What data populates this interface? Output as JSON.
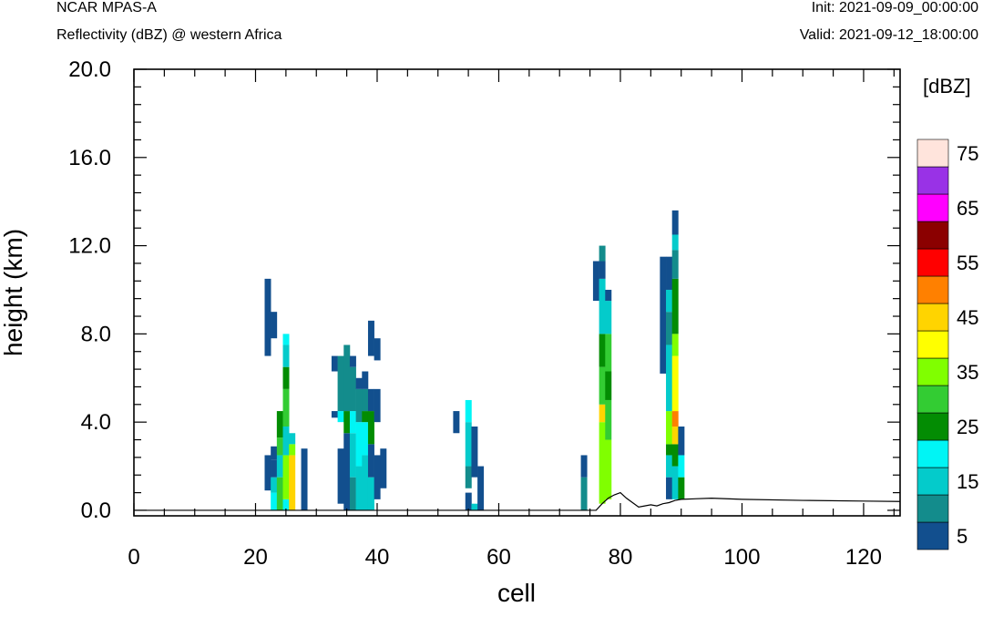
{
  "header": {
    "model": "NCAR MPAS-A",
    "field": "Reflectivity (dBZ) @ western Africa",
    "init": "Init: 2021-09-09_00:00:00",
    "valid": "Valid: 2021-09-12_18:00:00"
  },
  "chart_data": {
    "type": "heatmap",
    "xlabel": "cell",
    "ylabel": "height (km)",
    "xlim": [
      0,
      126
    ],
    "ylim": [
      -0.25,
      20
    ],
    "x_ticks": [
      "0",
      "20",
      "40",
      "60",
      "80",
      "100",
      "120"
    ],
    "x_tick_values": [
      0,
      20,
      40,
      60,
      80,
      100,
      120
    ],
    "y_ticks": [
      "0.0",
      "4.0",
      "8.0",
      "12.0",
      "16.0",
      "20.0"
    ],
    "y_tick_values": [
      0,
      4,
      8,
      12,
      16,
      20
    ],
    "colorbar": {
      "unit": "[dBZ]",
      "levels": [
        5,
        10,
        15,
        20,
        25,
        30,
        35,
        40,
        45,
        50,
        55,
        60,
        65,
        70,
        75
      ],
      "labels": [
        "5",
        "15",
        "25",
        "35",
        "45",
        "55",
        "65",
        "75"
      ],
      "colors": [
        "#124f8e",
        "#138c8c",
        "#04cbcb",
        "#00f5f5",
        "#038c03",
        "#33cc33",
        "#80ff00",
        "#ffff00",
        "#ffd400",
        "#ff8000",
        "#ff0000",
        "#8b0000",
        "#ff00ff",
        "#9932e6",
        "#ffe4dc"
      ]
    },
    "terrain_km": [
      [
        0,
        0
      ],
      [
        76,
        0
      ],
      [
        77,
        0.3
      ],
      [
        78,
        0.55
      ],
      [
        79,
        0.7
      ],
      [
        80,
        0.8
      ],
      [
        81,
        0.55
      ],
      [
        82,
        0.35
      ],
      [
        83,
        0.15
      ],
      [
        84,
        0.2
      ],
      [
        85,
        0.25
      ],
      [
        86,
        0.2
      ],
      [
        87,
        0.3
      ],
      [
        88,
        0.35
      ],
      [
        89,
        0.45
      ],
      [
        90,
        0.5
      ],
      [
        95,
        0.55
      ],
      [
        100,
        0.5
      ],
      [
        110,
        0.45
      ],
      [
        120,
        0.42
      ],
      [
        126,
        0.4
      ]
    ],
    "columns": [
      {
        "cell": 22,
        "segments": [
          [
            0.9,
            2.5,
            5
          ],
          [
            7.0,
            10.5,
            5
          ]
        ]
      },
      {
        "cell": 23,
        "segments": [
          [
            0.0,
            0.8,
            20
          ],
          [
            0.8,
            1.5,
            15
          ],
          [
            1.5,
            2.3,
            5
          ],
          [
            2.3,
            2.9,
            5
          ],
          [
            7.8,
            9.0,
            5
          ]
        ]
      },
      {
        "cell": 24,
        "segments": [
          [
            0.0,
            1.5,
            30
          ],
          [
            1.5,
            2.5,
            15
          ],
          [
            2.5,
            3.3,
            30
          ],
          [
            3.3,
            4.5,
            25
          ]
        ]
      },
      {
        "cell": 25,
        "segments": [
          [
            0.0,
            0.5,
            20
          ],
          [
            0.5,
            2.5,
            35
          ],
          [
            2.5,
            3.8,
            15
          ],
          [
            3.8,
            5.5,
            30
          ],
          [
            5.5,
            6.5,
            25
          ],
          [
            6.5,
            7.5,
            15
          ],
          [
            7.5,
            8.0,
            20
          ]
        ]
      },
      {
        "cell": 26,
        "segments": [
          [
            0.0,
            2.5,
            45
          ],
          [
            2.5,
            3.0,
            35
          ],
          [
            3.0,
            3.5,
            15
          ]
        ]
      },
      {
        "cell": 28,
        "segments": [
          [
            0.0,
            2.8,
            5
          ]
        ]
      },
      {
        "cell": 33,
        "segments": [
          [
            4.2,
            4.5,
            5
          ],
          [
            6.3,
            7.0,
            5
          ]
        ]
      },
      {
        "cell": 34,
        "segments": [
          [
            0.3,
            2.8,
            5
          ],
          [
            4.0,
            4.5,
            20
          ],
          [
            4.5,
            7.0,
            10
          ]
        ]
      },
      {
        "cell": 35,
        "segments": [
          [
            0.0,
            3.5,
            5
          ],
          [
            3.5,
            4.5,
            25
          ],
          [
            4.5,
            7.5,
            10
          ]
        ]
      },
      {
        "cell": 36,
        "segments": [
          [
            0.0,
            1.5,
            10
          ],
          [
            1.5,
            3.5,
            15
          ],
          [
            3.5,
            4.5,
            20
          ],
          [
            4.5,
            6.5,
            10
          ],
          [
            6.5,
            7.0,
            5
          ]
        ]
      },
      {
        "cell": 37,
        "segments": [
          [
            0.0,
            2.0,
            15
          ],
          [
            2.0,
            4.0,
            20
          ],
          [
            4.0,
            5.5,
            10
          ],
          [
            5.5,
            6.0,
            5
          ]
        ]
      },
      {
        "cell": 38,
        "segments": [
          [
            0.0,
            2.5,
            15
          ],
          [
            2.5,
            4.0,
            20
          ],
          [
            4.0,
            4.5,
            25
          ],
          [
            4.5,
            5.5,
            10
          ],
          [
            5.5,
            6.3,
            5
          ]
        ]
      },
      {
        "cell": 39,
        "segments": [
          [
            0.0,
            1.5,
            15
          ],
          [
            1.5,
            3.0,
            5
          ],
          [
            3.0,
            4.5,
            25
          ],
          [
            4.5,
            5.5,
            5
          ],
          [
            7.0,
            8.6,
            5
          ]
        ]
      },
      {
        "cell": 40,
        "segments": [
          [
            0.5,
            2.5,
            5
          ],
          [
            4.0,
            5.5,
            5
          ],
          [
            6.8,
            7.8,
            5
          ]
        ]
      },
      {
        "cell": 41,
        "segments": [
          [
            1.0,
            2.8,
            5
          ]
        ]
      },
      {
        "cell": 53,
        "segments": [
          [
            3.5,
            4.5,
            5
          ]
        ]
      },
      {
        "cell": 55,
        "segments": [
          [
            0.0,
            0.8,
            5
          ],
          [
            1.0,
            2.0,
            10
          ],
          [
            2.0,
            4.0,
            15
          ],
          [
            4.0,
            5.0,
            20
          ]
        ]
      },
      {
        "cell": 56,
        "segments": [
          [
            0.0,
            0.3,
            15
          ],
          [
            1.5,
            3.8,
            5
          ]
        ]
      },
      {
        "cell": 57,
        "segments": [
          [
            0.0,
            2.0,
            5
          ]
        ]
      },
      {
        "cell": 74,
        "segments": [
          [
            0.0,
            1.5,
            10
          ],
          [
            1.5,
            2.5,
            5
          ]
        ]
      },
      {
        "cell": 76,
        "segments": [
          [
            9.5,
            11.3,
            5
          ]
        ]
      },
      {
        "cell": 77,
        "segments": [
          [
            0.3,
            4.0,
            35
          ],
          [
            4.0,
            4.8,
            45
          ],
          [
            4.8,
            6.5,
            30
          ],
          [
            6.5,
            8.0,
            25
          ],
          [
            8.0,
            10.5,
            15
          ],
          [
            10.5,
            11.3,
            5
          ],
          [
            11.3,
            12.0,
            10
          ]
        ]
      },
      {
        "cell": 78,
        "segments": [
          [
            0.5,
            3.2,
            35
          ],
          [
            3.2,
            5.0,
            30
          ],
          [
            5.0,
            6.3,
            25
          ],
          [
            6.3,
            8.0,
            30
          ],
          [
            8.0,
            9.5,
            15
          ],
          [
            9.5,
            10.0,
            5
          ]
        ]
      },
      {
        "cell": 87,
        "segments": [
          [
            6.2,
            11.5,
            5
          ]
        ]
      },
      {
        "cell": 88,
        "segments": [
          [
            0.5,
            1.5,
            5
          ],
          [
            1.5,
            2.5,
            15
          ],
          [
            2.5,
            3.0,
            25
          ],
          [
            3.0,
            4.5,
            35
          ],
          [
            4.5,
            7.5,
            15
          ],
          [
            7.5,
            9.0,
            10
          ],
          [
            9.0,
            10.0,
            15
          ],
          [
            10.0,
            11.5,
            5
          ]
        ]
      },
      {
        "cell": 89,
        "segments": [
          [
            0.5,
            2.0,
            15
          ],
          [
            2.0,
            3.0,
            25
          ],
          [
            3.0,
            3.8,
            45
          ],
          [
            3.8,
            4.5,
            50
          ],
          [
            4.5,
            7.0,
            40
          ],
          [
            7.0,
            8.0,
            35
          ],
          [
            8.0,
            10.5,
            25
          ],
          [
            10.5,
            11.8,
            10
          ],
          [
            11.8,
            12.5,
            15
          ],
          [
            12.5,
            13.6,
            5
          ]
        ]
      },
      {
        "cell": 90,
        "segments": [
          [
            0.5,
            1.5,
            25
          ],
          [
            1.5,
            2.5,
            20
          ],
          [
            2.5,
            3.8,
            5
          ]
        ]
      }
    ]
  }
}
